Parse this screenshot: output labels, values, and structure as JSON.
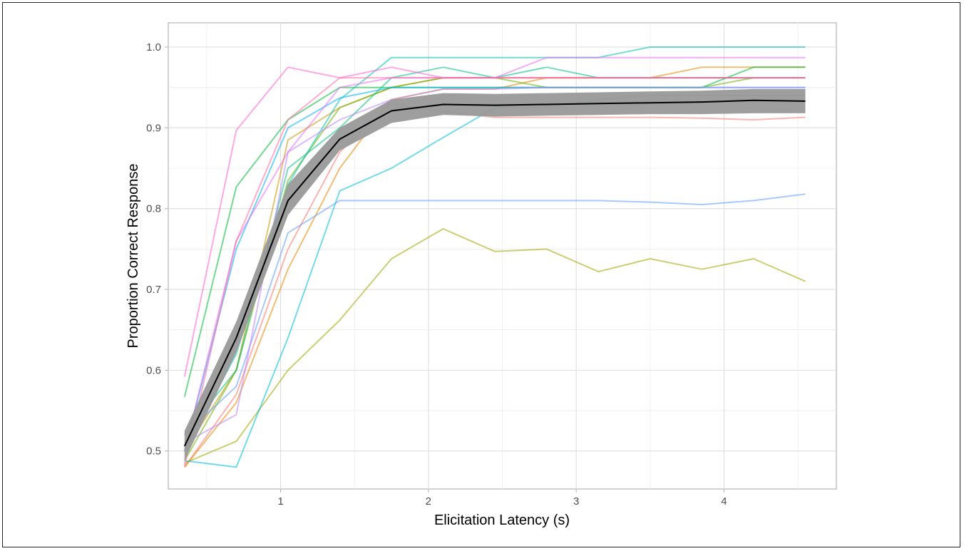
{
  "chart_data": {
    "type": "line",
    "title": "",
    "xlabel": "Elicitation Latency (s)",
    "ylabel": "Proportion Correct Response",
    "xlim": [
      0.24,
      4.76
    ],
    "ylim": [
      0.453,
      1.03
    ],
    "x_ticks": [
      1,
      2,
      3,
      4
    ],
    "y_ticks": [
      0.5,
      0.6,
      0.7,
      0.8,
      0.9,
      1.0
    ],
    "x_tick_labels": [
      "1",
      "2",
      "3",
      "4"
    ],
    "y_tick_labels": [
      "0.5",
      "0.6",
      "0.7",
      "0.8",
      "0.9",
      "1.0"
    ],
    "grid": true,
    "x": [
      0.35,
      0.7,
      1.05,
      1.4,
      1.75,
      2.1,
      2.45,
      2.8,
      3.15,
      3.5,
      3.85,
      4.2,
      4.55
    ],
    "individual_series": [
      {
        "color": "#f8766d",
        "values": [
          0.48,
          0.57,
          0.75,
          0.87,
          0.93,
          0.92,
          0.913,
          0.913,
          0.913,
          0.913,
          0.912,
          0.91,
          0.913
        ]
      },
      {
        "color": "#e58700",
        "values": [
          0.48,
          0.56,
          0.725,
          0.85,
          0.935,
          0.948,
          0.948,
          0.962,
          0.962,
          0.962,
          0.975,
          0.975,
          0.975
        ]
      },
      {
        "color": "#c99800",
        "values": [
          0.5,
          0.6,
          0.885,
          0.925,
          0.95,
          0.962,
          0.962,
          0.962,
          0.962,
          0.962,
          0.962,
          0.962,
          0.962
        ]
      },
      {
        "color": "#a3a500",
        "values": [
          0.485,
          0.512,
          0.6,
          0.662,
          0.738,
          0.775,
          0.747,
          0.75,
          0.722,
          0.738,
          0.725,
          0.738,
          0.71
        ]
      },
      {
        "color": "#6bb100",
        "values": [
          0.488,
          0.6,
          0.835,
          0.925,
          0.95,
          0.962,
          0.962,
          0.95,
          0.95,
          0.95,
          0.95,
          0.962,
          0.962
        ]
      },
      {
        "color": "#00ba38",
        "values": [
          0.567,
          0.827,
          0.91,
          0.95,
          0.95,
          0.95,
          0.95,
          0.95,
          0.95,
          0.95,
          0.95,
          0.975,
          0.975
        ]
      },
      {
        "color": "#00bf7d",
        "values": [
          0.52,
          0.6,
          0.85,
          0.9,
          0.962,
          0.975,
          0.962,
          0.975,
          0.962,
          0.962,
          0.962,
          0.962,
          0.962
        ]
      },
      {
        "color": "#00c0af",
        "values": [
          0.5,
          0.62,
          0.83,
          0.935,
          0.987,
          0.987,
          0.987,
          0.987,
          0.987,
          1.0,
          1.0,
          1.0,
          1.0
        ]
      },
      {
        "color": "#00bcd8",
        "values": [
          0.488,
          0.48,
          0.64,
          0.822,
          0.85,
          0.888,
          0.925,
          0.925,
          0.935,
          0.94,
          0.94,
          0.94,
          0.94
        ]
      },
      {
        "color": "#00b0f6",
        "values": [
          0.5,
          0.75,
          0.9,
          0.937,
          0.95,
          0.95,
          0.95,
          0.95,
          0.95,
          0.95,
          0.95,
          0.95,
          0.95
        ]
      },
      {
        "color": "#619cff",
        "values": [
          0.52,
          0.58,
          0.77,
          0.81,
          0.81,
          0.81,
          0.81,
          0.81,
          0.81,
          0.808,
          0.805,
          0.81,
          0.818
        ]
      },
      {
        "color": "#b983ff",
        "values": [
          0.51,
          0.545,
          0.87,
          0.91,
          0.935,
          0.948,
          0.948,
          0.95,
          0.95,
          0.95,
          0.95,
          0.95,
          0.95
        ]
      },
      {
        "color": "#e76bf3",
        "values": [
          0.5,
          0.76,
          0.87,
          0.95,
          0.962,
          0.962,
          0.962,
          0.987,
          0.987,
          0.987,
          0.987,
          0.987,
          0.987
        ]
      },
      {
        "color": "#fd61d1",
        "values": [
          0.592,
          0.897,
          0.975,
          0.962,
          0.975,
          0.962,
          0.962,
          0.962,
          0.962,
          0.962,
          0.962,
          0.962,
          0.962
        ]
      },
      {
        "color": "#ff67a4",
        "values": [
          0.482,
          0.76,
          0.91,
          0.962,
          0.962,
          0.962,
          0.962,
          0.962,
          0.962,
          0.962,
          0.962,
          0.962,
          0.962
        ]
      }
    ],
    "mean_series": {
      "color": "#000000",
      "values": [
        0.506,
        0.64,
        0.81,
        0.886,
        0.921,
        0.929,
        0.928,
        0.929,
        0.93,
        0.931,
        0.932,
        0.934,
        0.933
      ],
      "ci_lower": [
        0.488,
        0.622,
        0.792,
        0.872,
        0.906,
        0.916,
        0.914,
        0.915,
        0.916,
        0.917,
        0.917,
        0.918,
        0.918
      ],
      "ci_upper": [
        0.525,
        0.66,
        0.83,
        0.9,
        0.935,
        0.943,
        0.942,
        0.943,
        0.944,
        0.945,
        0.946,
        0.948,
        0.948
      ],
      "ci_color": "#999999"
    }
  }
}
